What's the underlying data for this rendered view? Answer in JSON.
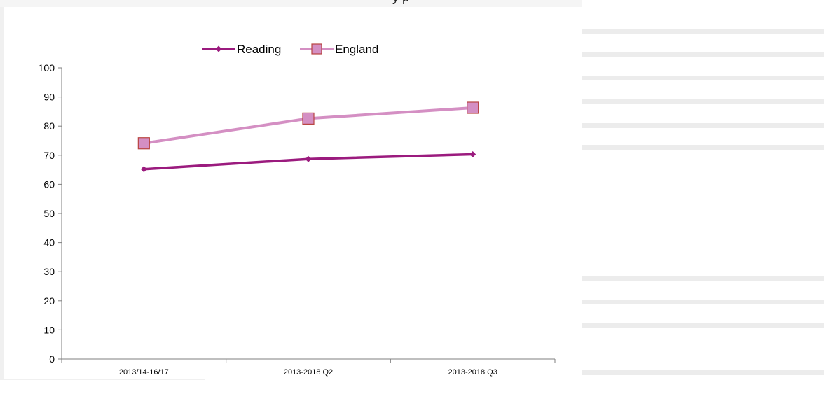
{
  "header_fragment": "y   p",
  "chart_data": {
    "type": "line",
    "categories": [
      "2013/14-16/17",
      "2013-2018 Q2",
      "2013-2018 Q3"
    ],
    "series": [
      {
        "name": "Reading",
        "values": [
          65.2,
          68.7,
          70.3
        ],
        "color": "#9b1b7e",
        "marker": "diamond"
      },
      {
        "name": "England",
        "values": [
          74.1,
          82.6,
          86.3
        ],
        "color": "#d48fc3",
        "marker": "square"
      }
    ],
    "ylim": [
      0,
      100
    ],
    "yticks": [
      0,
      10,
      20,
      30,
      40,
      50,
      60,
      70,
      80,
      90,
      100
    ],
    "grid": false,
    "legend": "top-center"
  }
}
